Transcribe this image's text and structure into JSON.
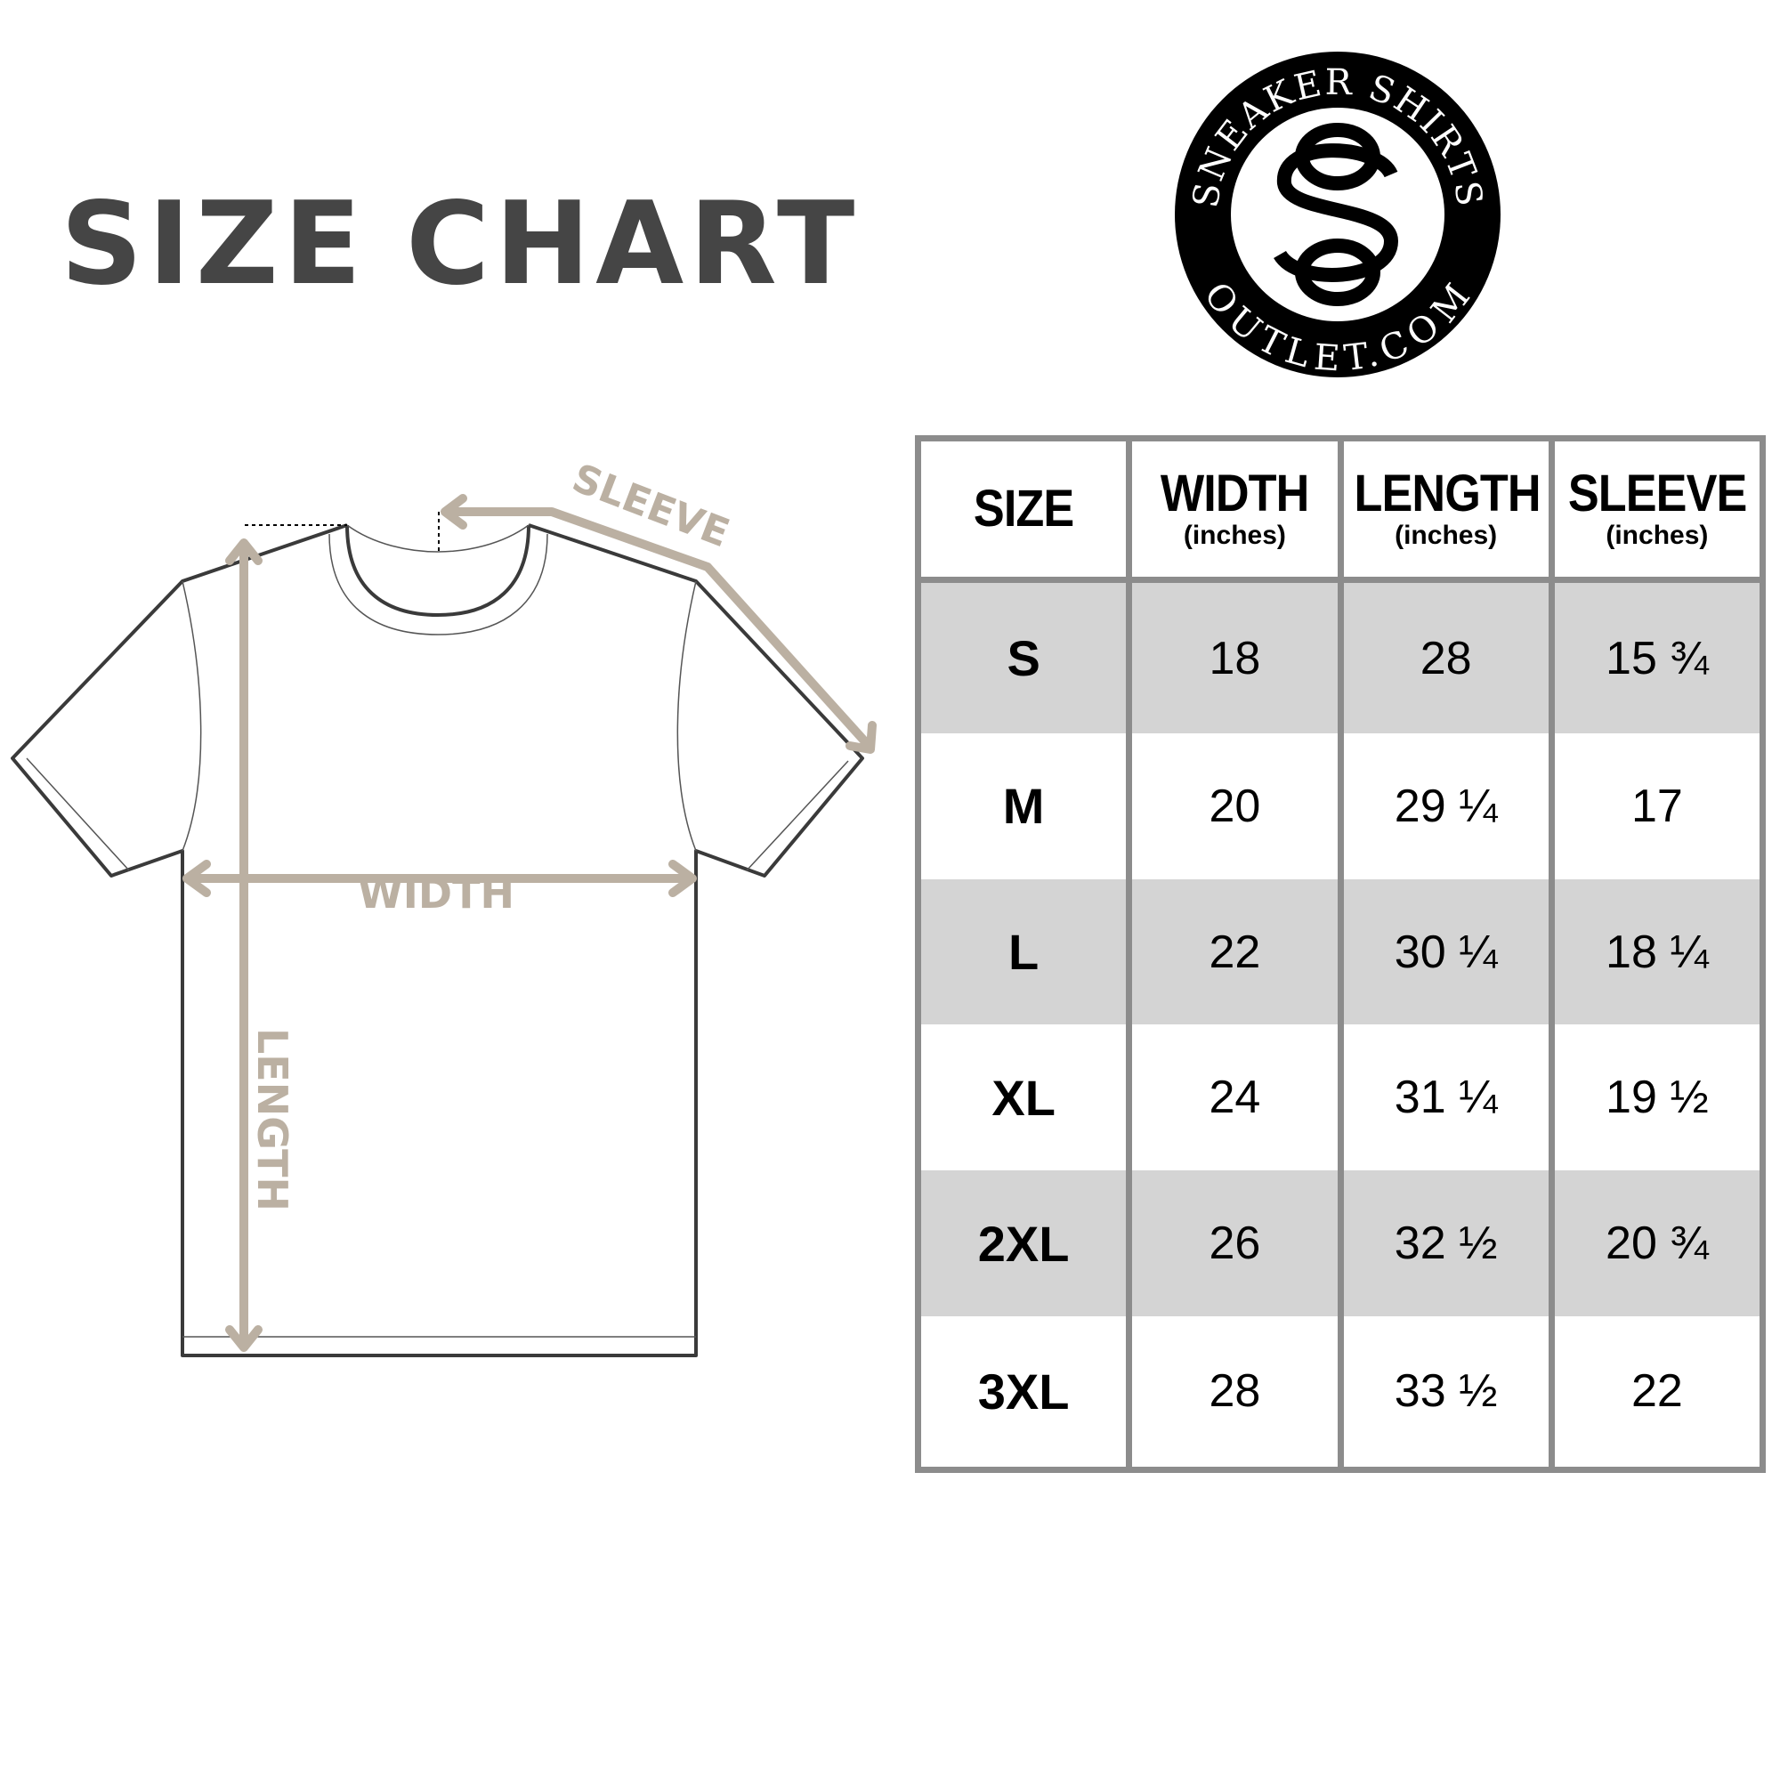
{
  "title": {
    "word1": "SIZE",
    "word2": "CHART"
  },
  "logo": {
    "top_text": "SNEAKER SHIRTS",
    "bottom_text": "OUTLET.COM",
    "monogram": "SO"
  },
  "diagram": {
    "sleeve_label": "SLEEVE",
    "width_label": "WIDTH",
    "length_label": "LENGTH",
    "arrow_color": "#bbb0a2",
    "outline_color": "#3a3a3a"
  },
  "table": {
    "headers": [
      {
        "label": "SIZE",
        "unit": ""
      },
      {
        "label": "WIDTH",
        "unit": "(inches)"
      },
      {
        "label": "LENGTH",
        "unit": "(inches)"
      },
      {
        "label": "SLEEVE",
        "unit": "(inches)"
      }
    ],
    "rows": [
      {
        "size": "S",
        "width": "18",
        "length": "28",
        "sleeve": "15 ¾",
        "shaded": true
      },
      {
        "size": "M",
        "width": "20",
        "length": "29 ¼",
        "sleeve": "17",
        "shaded": false
      },
      {
        "size": "L",
        "width": "22",
        "length": "30 ¼",
        "sleeve": "18 ¼",
        "shaded": true
      },
      {
        "size": "XL",
        "width": "24",
        "length": "31 ¼",
        "sleeve": "19 ½",
        "shaded": false
      },
      {
        "size": "2XL",
        "width": "26",
        "length": "32 ½",
        "sleeve": "20 ¾",
        "shaded": true
      },
      {
        "size": "3XL",
        "width": "28",
        "length": "33 ½",
        "sleeve": "22",
        "shaded": false
      }
    ],
    "shade_color": "#d4d4d4",
    "border_color": "#8c8c8c"
  }
}
